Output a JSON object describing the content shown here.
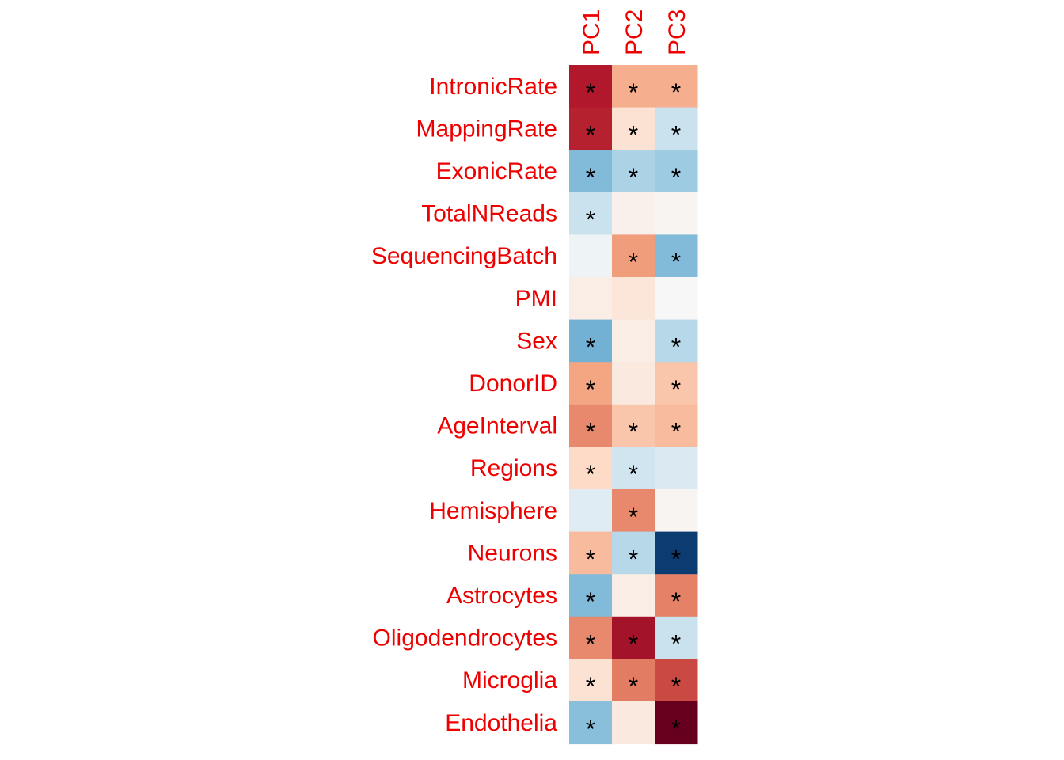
{
  "chart_data": {
    "type": "heatmap",
    "columns": [
      "PC1",
      "PC2",
      "PC3"
    ],
    "rows": [
      "IntronicRate",
      "MappingRate",
      "ExonicRate",
      "TotalNReads",
      "SequencingBatch",
      "PMI",
      "Sex",
      "DonorID",
      "AgeInterval",
      "Regions",
      "Hemisphere",
      "Neurons",
      "Astrocytes",
      "Oligodendrocytes",
      "Microglia",
      "Endothelia"
    ],
    "values": [
      [
        0.75,
        0.22,
        0.22
      ],
      [
        0.72,
        0.06,
        -0.1
      ],
      [
        -0.3,
        -0.18,
        -0.22
      ],
      [
        -0.1,
        0.02,
        0.01
      ],
      [
        -0.02,
        0.28,
        -0.3
      ],
      [
        0.03,
        0.05,
        0.0
      ],
      [
        -0.35,
        0.03,
        -0.15
      ],
      [
        0.25,
        0.04,
        0.15
      ],
      [
        0.35,
        0.15,
        0.18
      ],
      [
        0.08,
        -0.08,
        -0.06
      ],
      [
        -0.05,
        0.35,
        0.01
      ],
      [
        0.18,
        -0.15,
        -0.95
      ],
      [
        -0.3,
        0.03,
        0.38
      ],
      [
        0.35,
        0.8,
        -0.1
      ],
      [
        0.06,
        0.4,
        0.58
      ],
      [
        -0.28,
        0.04,
        1.0
      ]
    ],
    "significant": [
      [
        true,
        true,
        true
      ],
      [
        true,
        true,
        true
      ],
      [
        true,
        true,
        true
      ],
      [
        true,
        false,
        false
      ],
      [
        false,
        true,
        true
      ],
      [
        false,
        false,
        false
      ],
      [
        true,
        false,
        true
      ],
      [
        true,
        false,
        true
      ],
      [
        true,
        true,
        true
      ],
      [
        true,
        true,
        false
      ],
      [
        false,
        true,
        false
      ],
      [
        true,
        true,
        true
      ],
      [
        true,
        false,
        true
      ],
      [
        true,
        true,
        true
      ],
      [
        true,
        true,
        true
      ],
      [
        true,
        false,
        true
      ]
    ],
    "significance_marker": "*",
    "color_scale": {
      "low": "#053061",
      "mid": "#f7f7f7",
      "high": "#67001f",
      "range": [
        -1,
        1
      ]
    },
    "label_color": "#ee0000"
  }
}
